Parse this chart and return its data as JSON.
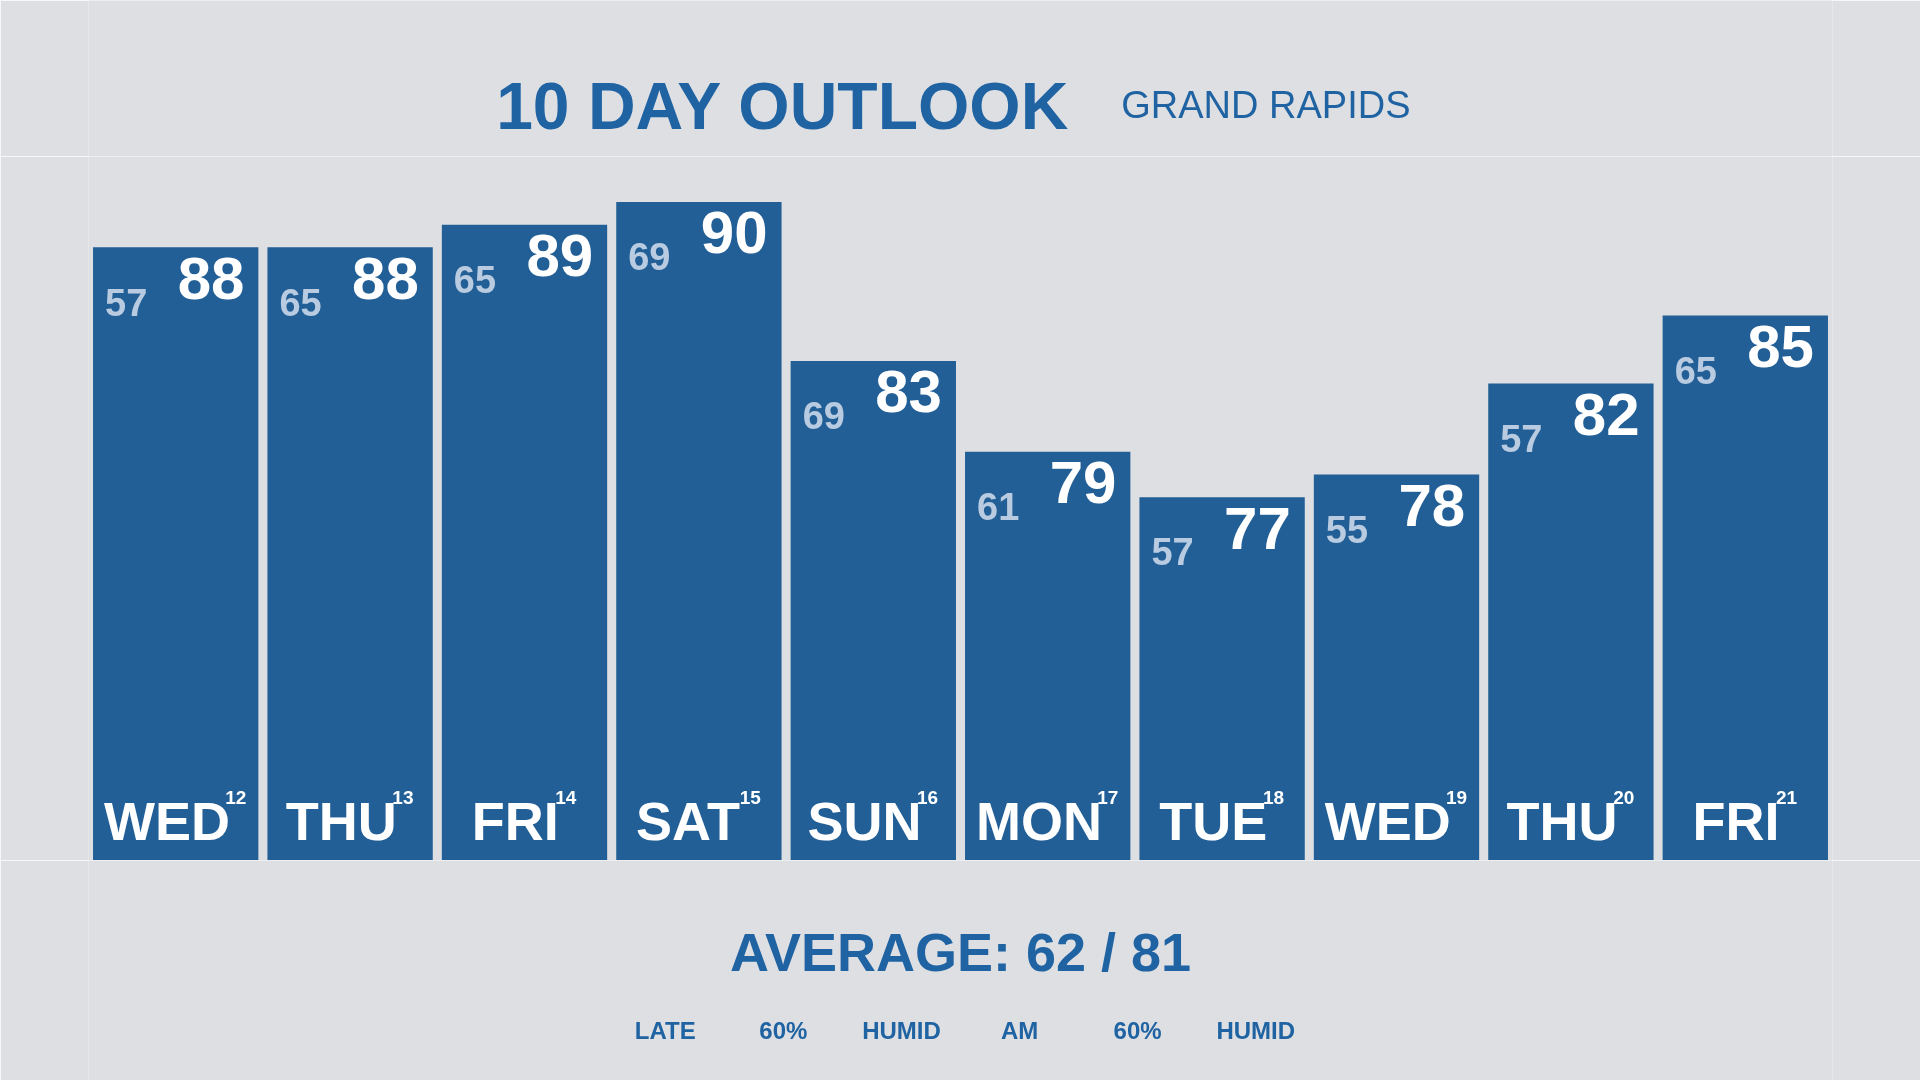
{
  "chart_data": {
    "type": "bar",
    "title": "10 DAY OUTLOOK",
    "subtitle": "GRAND RAPIDS",
    "categories": [
      "WED$^{12}$",
      "THU$^{13}$",
      "FRI$^{14}$",
      "SAT$^{15}$",
      "SUN$^{16}$",
      "MON$^{17}$",
      "TUE$^{18}$",
      "WED$^{19}$",
      "THU$^{20}$",
      "FRI$^{21}$"
    ],
    "values": [
      88,
      88,
      89,
      90,
      83,
      79,
      77,
      78,
      82,
      85
    ],
    "color": "#225f96",
    "ylim": [
      61,
      92
    ],
    "data_labels": true,
    "tick_labels": "x",
    "annotations": [
      {
        "text": "57",
        "x": "WED$^{12}$",
        "y": 88
      },
      {
        "text": "65",
        "x": "THU$^{13}$",
        "y": 88
      },
      {
        "text": "65",
        "x": "FRI$^{14}$",
        "y": 89
      },
      {
        "text": "69",
        "x": "SAT$^{15}$",
        "y": 90
      },
      {
        "text": "69",
        "x": "SUN$^{16}$",
        "y": 83
      },
      {
        "text": "61",
        "x": "MON$^{17}$",
        "y": 79
      },
      {
        "text": "57",
        "x": "TUE$^{18}$",
        "y": 77
      },
      {
        "text": "55",
        "x": "WED$^{19}$",
        "y": 78
      },
      {
        "text": "57",
        "x": "THU$^{20}$",
        "y": 82
      },
      {
        "text": "65",
        "x": "FRI$^{21}$",
        "y": 85
      },
      "LATE",
      "60%",
      "HUMID",
      "AM",
      "60%",
      "HUMID",
      "AVERAGE: 62 / 81"
    ]
  }
}
